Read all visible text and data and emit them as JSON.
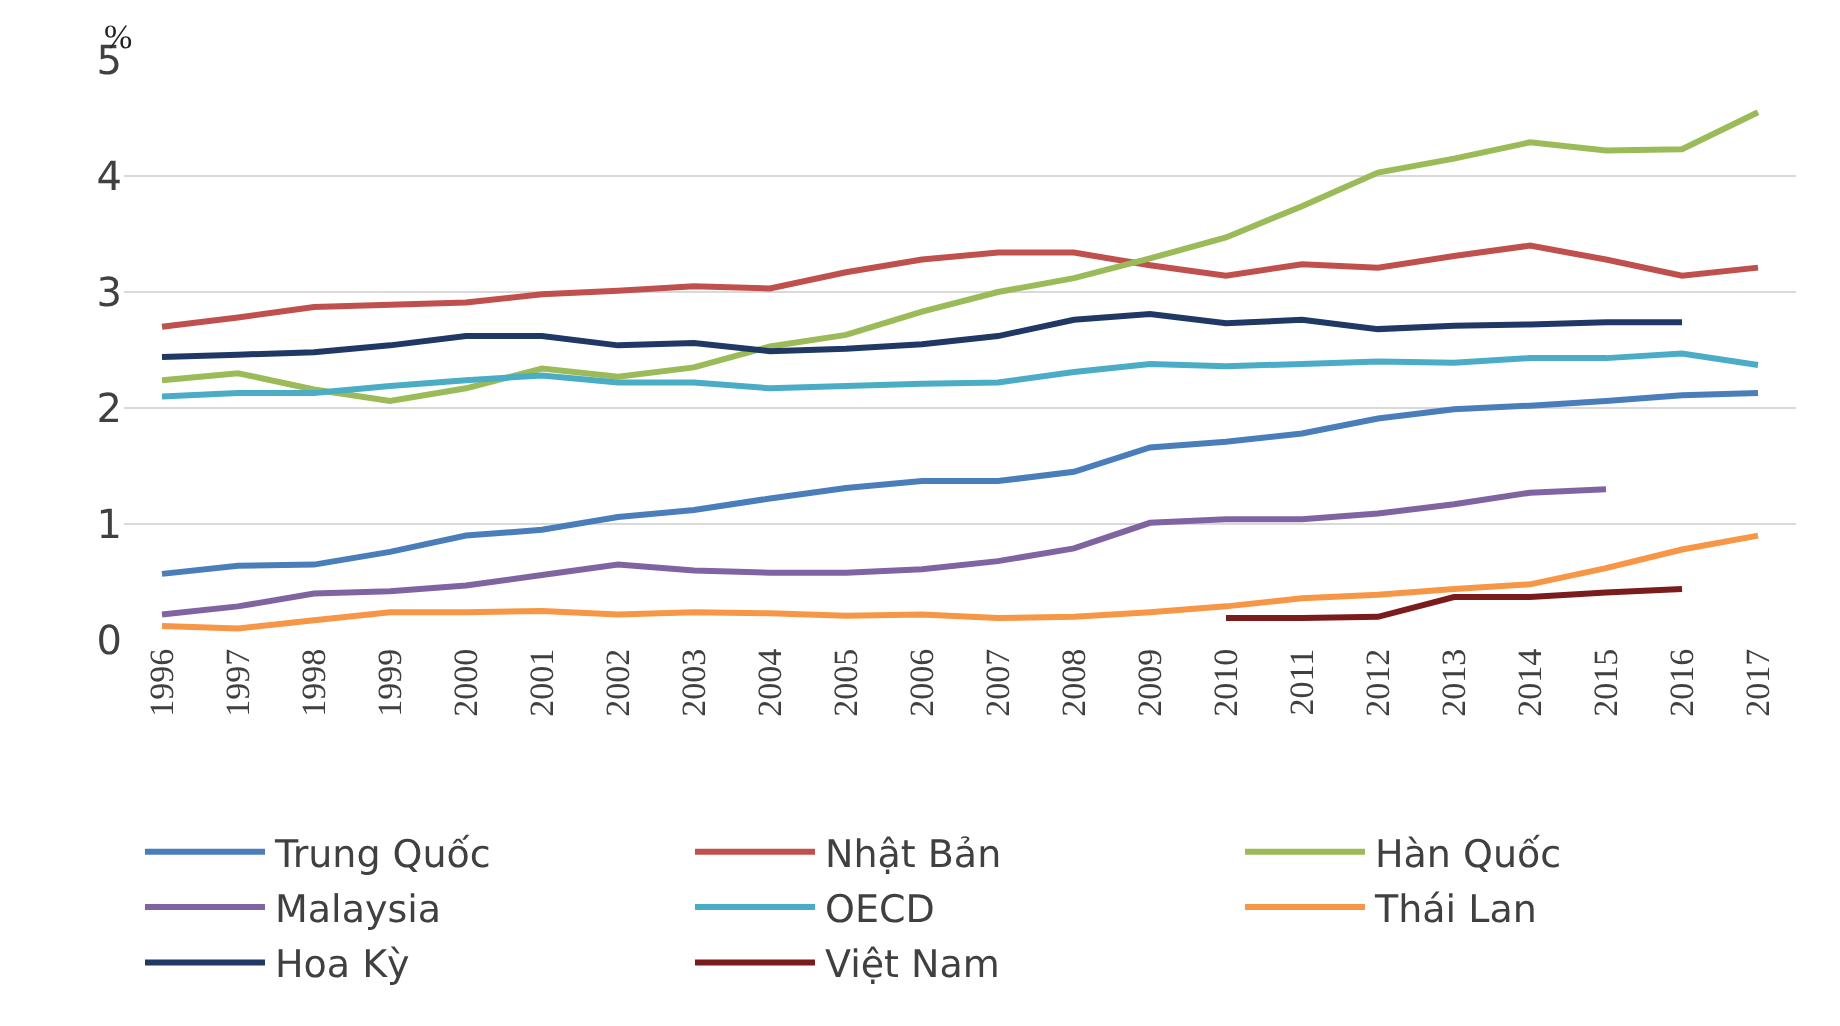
{
  "chart_data": {
    "type": "line",
    "ylabel": "%",
    "categories": [
      "1996",
      "1997",
      "1998",
      "1999",
      "2000",
      "2001",
      "2002",
      "2003",
      "2004",
      "2005",
      "2006",
      "2007",
      "2008",
      "2009",
      "2010",
      "2011",
      "2012",
      "2013",
      "2014",
      "2015",
      "2016",
      "2017"
    ],
    "series": [
      {
        "name": "Trung Quốc",
        "color": "#4a7ebb",
        "values": [
          0.57,
          0.64,
          0.65,
          0.76,
          0.9,
          0.95,
          1.06,
          1.12,
          1.22,
          1.31,
          1.37,
          1.37,
          1.45,
          1.66,
          1.71,
          1.78,
          1.91,
          1.99,
          2.02,
          2.06,
          2.11,
          2.13
        ]
      },
      {
        "name": "Nhật Bản",
        "color": "#c0504d",
        "values": [
          2.7,
          2.78,
          2.87,
          2.89,
          2.91,
          2.98,
          3.01,
          3.05,
          3.03,
          3.17,
          3.28,
          3.34,
          3.34,
          3.23,
          3.14,
          3.24,
          3.21,
          3.31,
          3.4,
          3.28,
          3.14,
          3.21
        ]
      },
      {
        "name": "Hàn Quốc",
        "color": "#9bbb59",
        "values": [
          2.24,
          2.3,
          2.16,
          2.06,
          2.17,
          2.34,
          2.27,
          2.35,
          2.53,
          2.63,
          2.83,
          3.0,
          3.12,
          3.29,
          3.47,
          3.74,
          4.03,
          4.15,
          4.29,
          4.22,
          4.23,
          4.55
        ]
      },
      {
        "name": "Malaysia",
        "color": "#8064a2",
        "values": [
          0.22,
          0.29,
          0.4,
          0.42,
          0.47,
          0.56,
          0.65,
          0.6,
          0.58,
          0.58,
          0.61,
          0.68,
          0.79,
          1.01,
          1.04,
          1.04,
          1.09,
          1.17,
          1.27,
          1.3,
          null,
          null
        ]
      },
      {
        "name": "OECD",
        "color": "#4bacc6",
        "values": [
          2.1,
          2.13,
          2.13,
          2.19,
          2.24,
          2.28,
          2.22,
          2.22,
          2.17,
          2.19,
          2.21,
          2.22,
          2.31,
          2.38,
          2.36,
          2.38,
          2.4,
          2.39,
          2.43,
          2.43,
          2.47,
          2.37
        ]
      },
      {
        "name": "Thái Lan",
        "color": "#f79646",
        "values": [
          0.12,
          0.1,
          0.17,
          0.24,
          0.24,
          0.25,
          0.22,
          0.24,
          0.23,
          0.21,
          0.22,
          0.19,
          0.2,
          0.24,
          0.29,
          0.36,
          0.39,
          0.44,
          0.48,
          0.62,
          0.78,
          0.9
        ]
      },
      {
        "name": "Hoa Kỳ",
        "color": "#1f3864",
        "values": [
          2.44,
          2.46,
          2.48,
          2.54,
          2.62,
          2.62,
          2.54,
          2.56,
          2.49,
          2.51,
          2.55,
          2.62,
          2.76,
          2.81,
          2.73,
          2.76,
          2.68,
          2.71,
          2.72,
          2.74,
          2.74,
          null
        ]
      },
      {
        "name": "Việt Nam",
        "color": "#7b1c1c",
        "values": [
          null,
          null,
          null,
          null,
          null,
          null,
          null,
          null,
          null,
          null,
          null,
          null,
          null,
          null,
          0.19,
          0.19,
          0.2,
          0.37,
          0.37,
          0.41,
          0.44,
          null
        ]
      }
    ],
    "ylim": [
      0,
      5
    ],
    "yticks": [
      0,
      1,
      2,
      3,
      4,
      5
    ],
    "grid": "y",
    "legend": "bottom",
    "marker": "none",
    "line_style": "solid"
  }
}
